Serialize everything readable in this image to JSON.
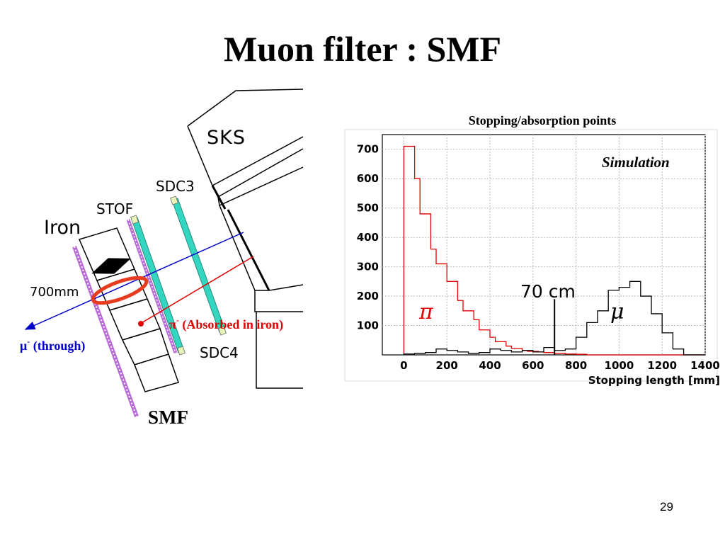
{
  "slide": {
    "title": "Muon filter : SMF",
    "page_number": "29"
  },
  "diagram": {
    "labels": {
      "sks": "SKS",
      "sdc3": "SDC3",
      "stof": "STOF",
      "iron": "Iron",
      "thickness": "700mm",
      "sdc4": "SDC4",
      "smf": "SMF"
    },
    "particles": {
      "pion": {
        "symbol": "π",
        "charge": "-",
        "note": " (Absorbed in iron)",
        "color": "#e00000"
      },
      "muon": {
        "symbol": "μ",
        "charge": "-",
        "note": " (through)",
        "color": "#0000cc"
      }
    },
    "colors": {
      "chamber": "#33d6c0",
      "scintillator": "#b86bd6",
      "highlight": "#e63b1e"
    }
  },
  "chart_data": {
    "type": "line",
    "title": "Stopping/absorption points",
    "annotation": "Simulation",
    "cut_label": "70 cm",
    "cut_value": 700,
    "xlabel": "Stopping length [mm]",
    "ylabel": "",
    "xlim": [
      -100,
      1400
    ],
    "ylim": [
      0,
      750
    ],
    "x_ticks": [
      0,
      200,
      400,
      600,
      800,
      1000,
      1200,
      1400
    ],
    "y_ticks": [
      100,
      200,
      300,
      400,
      500,
      600,
      700
    ],
    "grid": true,
    "series": [
      {
        "name": "π",
        "color": "#e00000",
        "bin_width": 25,
        "x_start": 0,
        "values": [
          710,
          710,
          600,
          480,
          480,
          360,
          310,
          310,
          250,
          250,
          185,
          150,
          150,
          120,
          85,
          85,
          60,
          45,
          45,
          30,
          22,
          22,
          15,
          12,
          12,
          10,
          8,
          8,
          5,
          5,
          3,
          3,
          2,
          2,
          0,
          0,
          0,
          0,
          0,
          0,
          0,
          0,
          0,
          0,
          0,
          0,
          0,
          0,
          0,
          0,
          0,
          0,
          0,
          0,
          0,
          0
        ]
      },
      {
        "name": "μ",
        "color": "#000000",
        "bin_width": 25,
        "x_start": 0,
        "values": [
          3,
          3,
          5,
          5,
          8,
          8,
          20,
          20,
          15,
          15,
          10,
          10,
          5,
          5,
          8,
          8,
          20,
          20,
          15,
          15,
          10,
          10,
          15,
          15,
          10,
          10,
          25,
          25,
          15,
          15,
          20,
          20,
          60,
          60,
          110,
          110,
          150,
          150,
          220,
          220,
          230,
          230,
          250,
          250,
          200,
          200,
          140,
          140,
          75,
          75,
          20,
          20,
          0,
          0,
          0,
          0
        ]
      }
    ]
  }
}
